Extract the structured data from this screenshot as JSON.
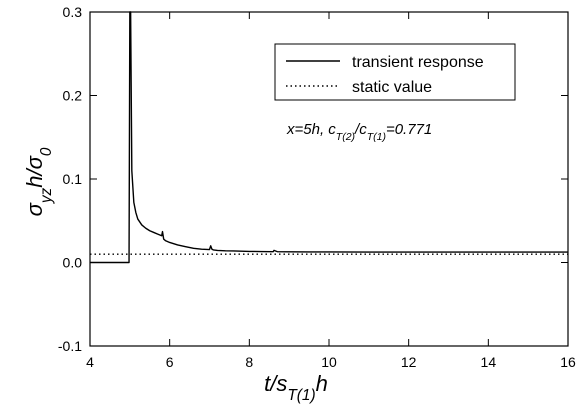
{
  "chart_data": {
    "type": "line",
    "x_axis": {
      "label_parts": [
        {
          "text": "t/s",
          "sub": false
        },
        {
          "text": "T(1)",
          "sub": true
        },
        {
          "text": "h",
          "sub": false
        }
      ],
      "range": [
        4,
        16
      ],
      "ticks": [
        4,
        6,
        8,
        10,
        12,
        14,
        16
      ],
      "tick_labels": [
        "4",
        "6",
        "8",
        "10",
        "12",
        "14",
        "16"
      ]
    },
    "y_axis": {
      "label_parts": [
        {
          "text": "σ",
          "sub": false
        },
        {
          "text": "yz",
          "sub": true
        },
        {
          "text": "h/σ",
          "sub": false
        },
        {
          "text": "0",
          "sub": true
        }
      ],
      "range": [
        -0.1,
        0.3
      ],
      "ticks": [
        -0.1,
        0.0,
        0.1,
        0.2,
        0.3
      ],
      "tick_labels": [
        "-0.1",
        "0.0",
        "0.1",
        "0.2",
        "0.3"
      ]
    },
    "grid": false,
    "legend_position": "top-right",
    "series": [
      {
        "name": "transient response",
        "style": "solid",
        "color": "#000000",
        "x": [
          4.0,
          4.98,
          5.0,
          5.02,
          5.05,
          5.1,
          5.15,
          5.2,
          5.3,
          5.4,
          5.5,
          5.6,
          5.7,
          5.8,
          5.82,
          5.85,
          5.9,
          6.0,
          6.2,
          6.4,
          6.6,
          6.8,
          7.0,
          7.03,
          7.06,
          7.1,
          7.2,
          7.4,
          7.6,
          7.8,
          8.0,
          8.3,
          8.6,
          8.62,
          8.7,
          9.0,
          9.5,
          10.0,
          11.0,
          12.0,
          13.0,
          14.0,
          15.0,
          16.0
        ],
        "y": [
          0.0,
          0.0,
          0.3,
          0.3,
          0.11,
          0.072,
          0.06,
          0.052,
          0.045,
          0.041,
          0.038,
          0.036,
          0.034,
          0.032,
          0.037,
          0.028,
          0.026,
          0.024,
          0.021,
          0.019,
          0.017,
          0.016,
          0.0155,
          0.02,
          0.016,
          0.015,
          0.0145,
          0.014,
          0.0138,
          0.0135,
          0.0133,
          0.0131,
          0.013,
          0.0145,
          0.013,
          0.0128,
          0.0127,
          0.0126,
          0.0125,
          0.0125,
          0.0125,
          0.0125,
          0.0125,
          0.0125
        ]
      },
      {
        "name": "static value",
        "style": "dotted",
        "color": "#000000",
        "x": [
          4.0,
          16.0
        ],
        "y": [
          0.01,
          0.01
        ]
      }
    ],
    "annotation": {
      "parts": [
        {
          "text": "x=5h,  c",
          "sub": false
        },
        {
          "text": "T(2)",
          "sub": true
        },
        {
          "text": "/c",
          "sub": false
        },
        {
          "text": "T(1)",
          "sub": true
        },
        {
          "text": "=0.771",
          "sub": false
        }
      ]
    }
  }
}
